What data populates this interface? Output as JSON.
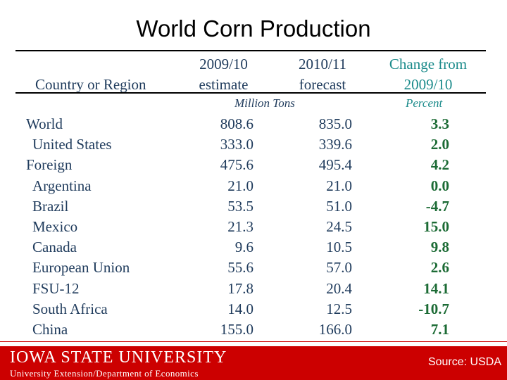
{
  "title": "World Corn Production",
  "headers": {
    "country": "Country or Region",
    "col1_line1": "2009/10",
    "col1_line2": "estimate",
    "col2_line1": "2010/11",
    "col2_line2": "forecast",
    "col3_line1": "Change from",
    "col3_line2": "2009/10"
  },
  "units": {
    "million_tons": "Million Tons",
    "percent": "Percent"
  },
  "rows": [
    {
      "name": "World",
      "v2009": "808.6",
      "v2010": "835.0",
      "change": "3.3"
    },
    {
      "name": "United States",
      "v2009": "333.0",
      "v2010": "339.6",
      "change": "2.0"
    },
    {
      "name": "Foreign",
      "v2009": "475.6",
      "v2010": "495.4",
      "change": "4.2"
    },
    {
      "name": "Argentina",
      "v2009": "21.0",
      "v2010": "21.0",
      "change": "0.0"
    },
    {
      "name": "Brazil",
      "v2009": "53.5",
      "v2010": "51.0",
      "change": "-4.7"
    },
    {
      "name": "Mexico",
      "v2009": "21.3",
      "v2010": "24.5",
      "change": "15.0"
    },
    {
      "name": "Canada",
      "v2009": "9.6",
      "v2010": "10.5",
      "change": "9.8"
    },
    {
      "name": "European Union",
      "v2009": "55.6",
      "v2010": "57.0",
      "change": "2.6"
    },
    {
      "name": "FSU-12",
      "v2009": "17.8",
      "v2010": "20.4",
      "change": "14.1"
    },
    {
      "name": "South Africa",
      "v2009": "14.0",
      "v2010": "12.5",
      "change": "-10.7"
    },
    {
      "name": "China",
      "v2009": "155.0",
      "v2010": "166.0",
      "change": "7.1"
    }
  ],
  "footer": {
    "logo": "IOWA STATE UNIVERSITY",
    "extension": "University Extension/Department of Economics",
    "source": "Source: USDA"
  },
  "colors": {
    "brand_red": "#cc0000",
    "text_navy": "#1f3b5c",
    "change_teal": "#1a8a8a",
    "value_green": "#1c6b35"
  }
}
